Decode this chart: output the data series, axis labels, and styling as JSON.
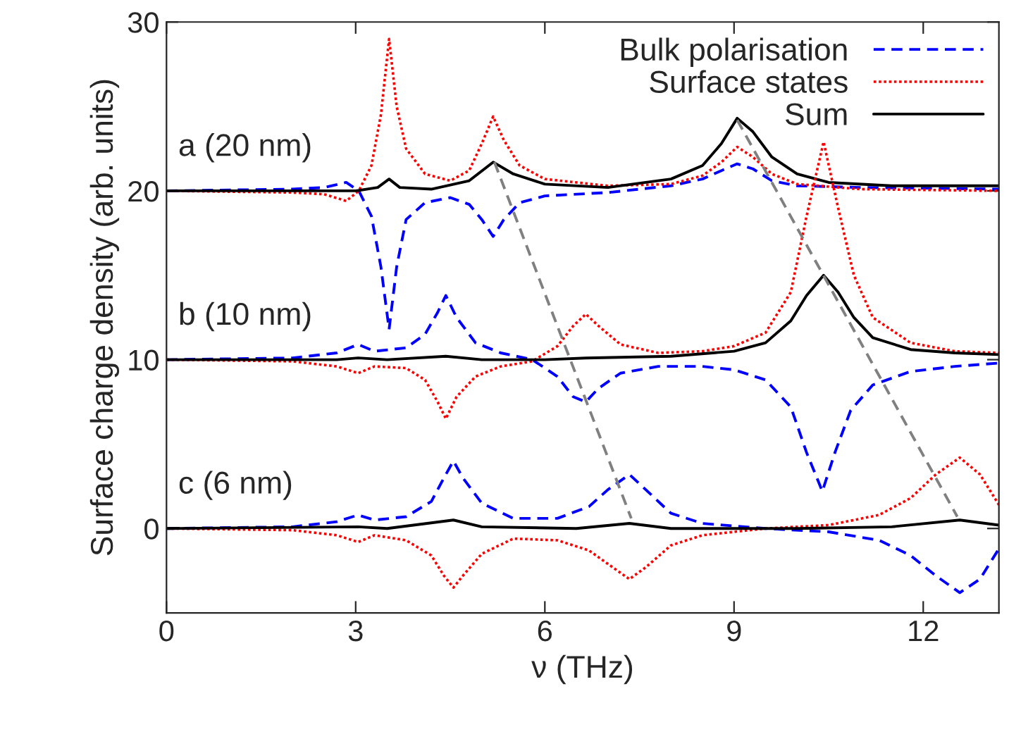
{
  "chart_data": {
    "type": "line",
    "xlabel": "ν (THz)",
    "ylabel": "Surface charge density (arb. units)",
    "xlim": [
      0,
      13.2
    ],
    "ylim": [
      -5,
      30
    ],
    "xticks": [
      0,
      3,
      6,
      9,
      12
    ],
    "yticks": [
      0,
      10,
      20,
      30
    ],
    "grid": false,
    "legend": "top right",
    "marker": "none",
    "annotations": [
      "a (20 nm)",
      "b (10 nm)",
      "c (6 nm)"
    ],
    "series": [
      {
        "name": "Bulk polarisation",
        "color": "#0000ff",
        "line_style": "dashed",
        "x": [
          0,
          2,
          2.5,
          2.85,
          3.05,
          3.25,
          3.4,
          3.53,
          3.65,
          3.8,
          4.1,
          4.5,
          4.8,
          5.0,
          5.18,
          5.35,
          5.6,
          6.0,
          7.0,
          8.0,
          8.5,
          8.8,
          9.05,
          9.3,
          9.6,
          10.0,
          11,
          13.2
        ],
        "values": [
          20,
          20.1,
          20.2,
          20.5,
          20.0,
          18.5,
          15.5,
          11.8,
          15.5,
          18.3,
          19.3,
          19.6,
          19.2,
          18.3,
          17.3,
          18.3,
          19.3,
          19.7,
          19.9,
          20.3,
          20.7,
          21.2,
          21.6,
          21.3,
          20.6,
          20.3,
          20.2,
          20.1
        ]
      },
      {
        "name": "Surface states",
        "color": "#ff0000",
        "line_style": "dotted",
        "x": [
          0,
          2,
          2.5,
          2.85,
          3.05,
          3.25,
          3.4,
          3.53,
          3.65,
          3.8,
          4.1,
          4.5,
          4.8,
          5.0,
          5.18,
          5.35,
          5.6,
          6.0,
          7.0,
          8.0,
          8.5,
          8.8,
          9.05,
          9.3,
          9.6,
          10.0,
          11,
          13.2
        ],
        "values": [
          20,
          19.9,
          19.8,
          19.4,
          20.0,
          21.5,
          24.5,
          29.0,
          25,
          22.5,
          21.0,
          20.6,
          21.2,
          22.8,
          24.4,
          23.0,
          21.5,
          20.7,
          20.3,
          20.4,
          20.9,
          21.7,
          22.6,
          22.0,
          21.0,
          20.4,
          20.1,
          20.0
        ]
      },
      {
        "name": "Sum",
        "color": "#000000",
        "line_style": "solid",
        "x": [
          0,
          3.0,
          3.35,
          3.53,
          3.7,
          4.2,
          4.8,
          5.18,
          5.5,
          6.0,
          7.0,
          8.0,
          8.5,
          8.8,
          9.05,
          9.3,
          9.6,
          10.0,
          10.5,
          11.5,
          13.2
        ],
        "values": [
          20,
          20.0,
          20.2,
          20.7,
          20.2,
          20.1,
          20.6,
          21.7,
          21.0,
          20.4,
          20.2,
          20.7,
          21.5,
          22.8,
          24.3,
          23.5,
          22.0,
          21.0,
          20.5,
          20.3,
          20.3
        ]
      },
      {
        "color": "#0000ff",
        "line_style": "dashed",
        "x": [
          0,
          2,
          2.7,
          3.04,
          3.3,
          3.8,
          4.1,
          4.3,
          4.43,
          4.6,
          4.9,
          5.3,
          5.8,
          6.2,
          6.45,
          6.65,
          6.85,
          7.2,
          7.8,
          8.5,
          9.0,
          9.5,
          9.9,
          10.15,
          10.4,
          10.6,
          10.85,
          11.2,
          11.8,
          12.5,
          13.2
        ],
        "values": [
          10,
          10.1,
          10.4,
          10.9,
          10.5,
          10.7,
          11.5,
          12.8,
          13.8,
          12.5,
          11.0,
          10.4,
          10.0,
          9.0,
          7.8,
          7.5,
          8.3,
          9.2,
          9.6,
          9.6,
          9.4,
          8.8,
          7.2,
          4.5,
          2.2,
          4.5,
          7.0,
          8.5,
          9.3,
          9.6,
          9.8
        ]
      },
      {
        "color": "#ff0000",
        "line_style": "dotted",
        "x": [
          0,
          2,
          2.7,
          3.04,
          3.3,
          3.8,
          4.1,
          4.3,
          4.43,
          4.6,
          4.9,
          5.3,
          5.8,
          6.2,
          6.45,
          6.65,
          6.85,
          7.2,
          7.8,
          8.5,
          9.0,
          9.5,
          9.9,
          10.15,
          10.42,
          10.65,
          10.9,
          11.2,
          11.8,
          12.5,
          13.2
        ],
        "values": [
          10,
          9.9,
          9.6,
          9.2,
          9.6,
          9.5,
          8.8,
          7.5,
          6.5,
          7.8,
          9.0,
          9.6,
          9.9,
          10.8,
          12.0,
          12.7,
          12.0,
          10.9,
          10.4,
          10.5,
          10.8,
          11.6,
          14.0,
          18.5,
          22.9,
          19.0,
          15.0,
          12.5,
          11.0,
          10.5,
          10.4
        ]
      },
      {
        "color": "#000000",
        "line_style": "solid",
        "x": [
          0,
          2.7,
          3.04,
          3.5,
          4.43,
          5.0,
          6.0,
          6.65,
          8.0,
          9.0,
          9.5,
          9.9,
          10.15,
          10.42,
          10.65,
          10.9,
          11.2,
          11.8,
          12.5,
          13.2
        ],
        "values": [
          10,
          10.0,
          10.1,
          10.0,
          10.2,
          10.0,
          10.0,
          10.1,
          10.2,
          10.5,
          11.0,
          12.3,
          13.8,
          15.0,
          14.0,
          12.5,
          11.3,
          10.6,
          10.4,
          10.3
        ]
      },
      {
        "color": "#0000ff",
        "line_style": "dashed",
        "x": [
          0,
          2,
          2.7,
          3.04,
          3.3,
          3.8,
          4.2,
          4.4,
          4.55,
          4.7,
          5.0,
          5.5,
          6.2,
          6.7,
          7.0,
          7.34,
          7.6,
          8.0,
          8.5,
          9.5,
          10.5,
          11.3,
          11.8,
          12.2,
          12.58,
          12.9,
          13.2
        ],
        "values": [
          0,
          0.1,
          0.4,
          0.8,
          0.5,
          0.7,
          1.6,
          3.0,
          4.0,
          3.0,
          1.5,
          0.6,
          0.6,
          1.3,
          2.3,
          3.2,
          2.3,
          0.9,
          0.3,
          0.0,
          -0.2,
          -0.7,
          -1.6,
          -2.8,
          -3.8,
          -3.0,
          -1.2
        ]
      },
      {
        "color": "#ff0000",
        "line_style": "dotted",
        "x": [
          0,
          2,
          2.7,
          3.04,
          3.3,
          3.8,
          4.2,
          4.4,
          4.55,
          4.7,
          5.0,
          5.5,
          6.2,
          6.7,
          7.0,
          7.34,
          7.6,
          8.0,
          8.5,
          9.5,
          10.5,
          11.3,
          11.8,
          12.2,
          12.58,
          12.9,
          13.2
        ],
        "values": [
          0,
          -0.1,
          -0.4,
          -0.8,
          -0.4,
          -0.7,
          -1.6,
          -2.8,
          -3.5,
          -2.8,
          -1.5,
          -0.6,
          -0.7,
          -1.3,
          -2.1,
          -3.0,
          -2.3,
          -1.0,
          -0.4,
          0.0,
          0.2,
          0.8,
          1.8,
          3.2,
          4.2,
          3.2,
          1.4
        ]
      },
      {
        "color": "#000000",
        "line_style": "solid",
        "x": [
          0,
          3.04,
          3.5,
          4.55,
          5.0,
          6.5,
          7.34,
          8.0,
          10,
          11.5,
          12.58,
          13.2
        ],
        "values": [
          0,
          0.1,
          0.0,
          0.5,
          0.1,
          0.0,
          0.3,
          0.0,
          0.0,
          0.1,
          0.5,
          0.2
        ]
      },
      {
        "color": "#808080",
        "line_style": "dashed",
        "x": [
          5.2,
          7.37
        ],
        "values": [
          21.7,
          0.6
        ]
      },
      {
        "color": "#808080",
        "line_style": "dashed",
        "x": [
          9.05,
          12.54
        ],
        "values": [
          24.2,
          0.7
        ]
      }
    ]
  }
}
